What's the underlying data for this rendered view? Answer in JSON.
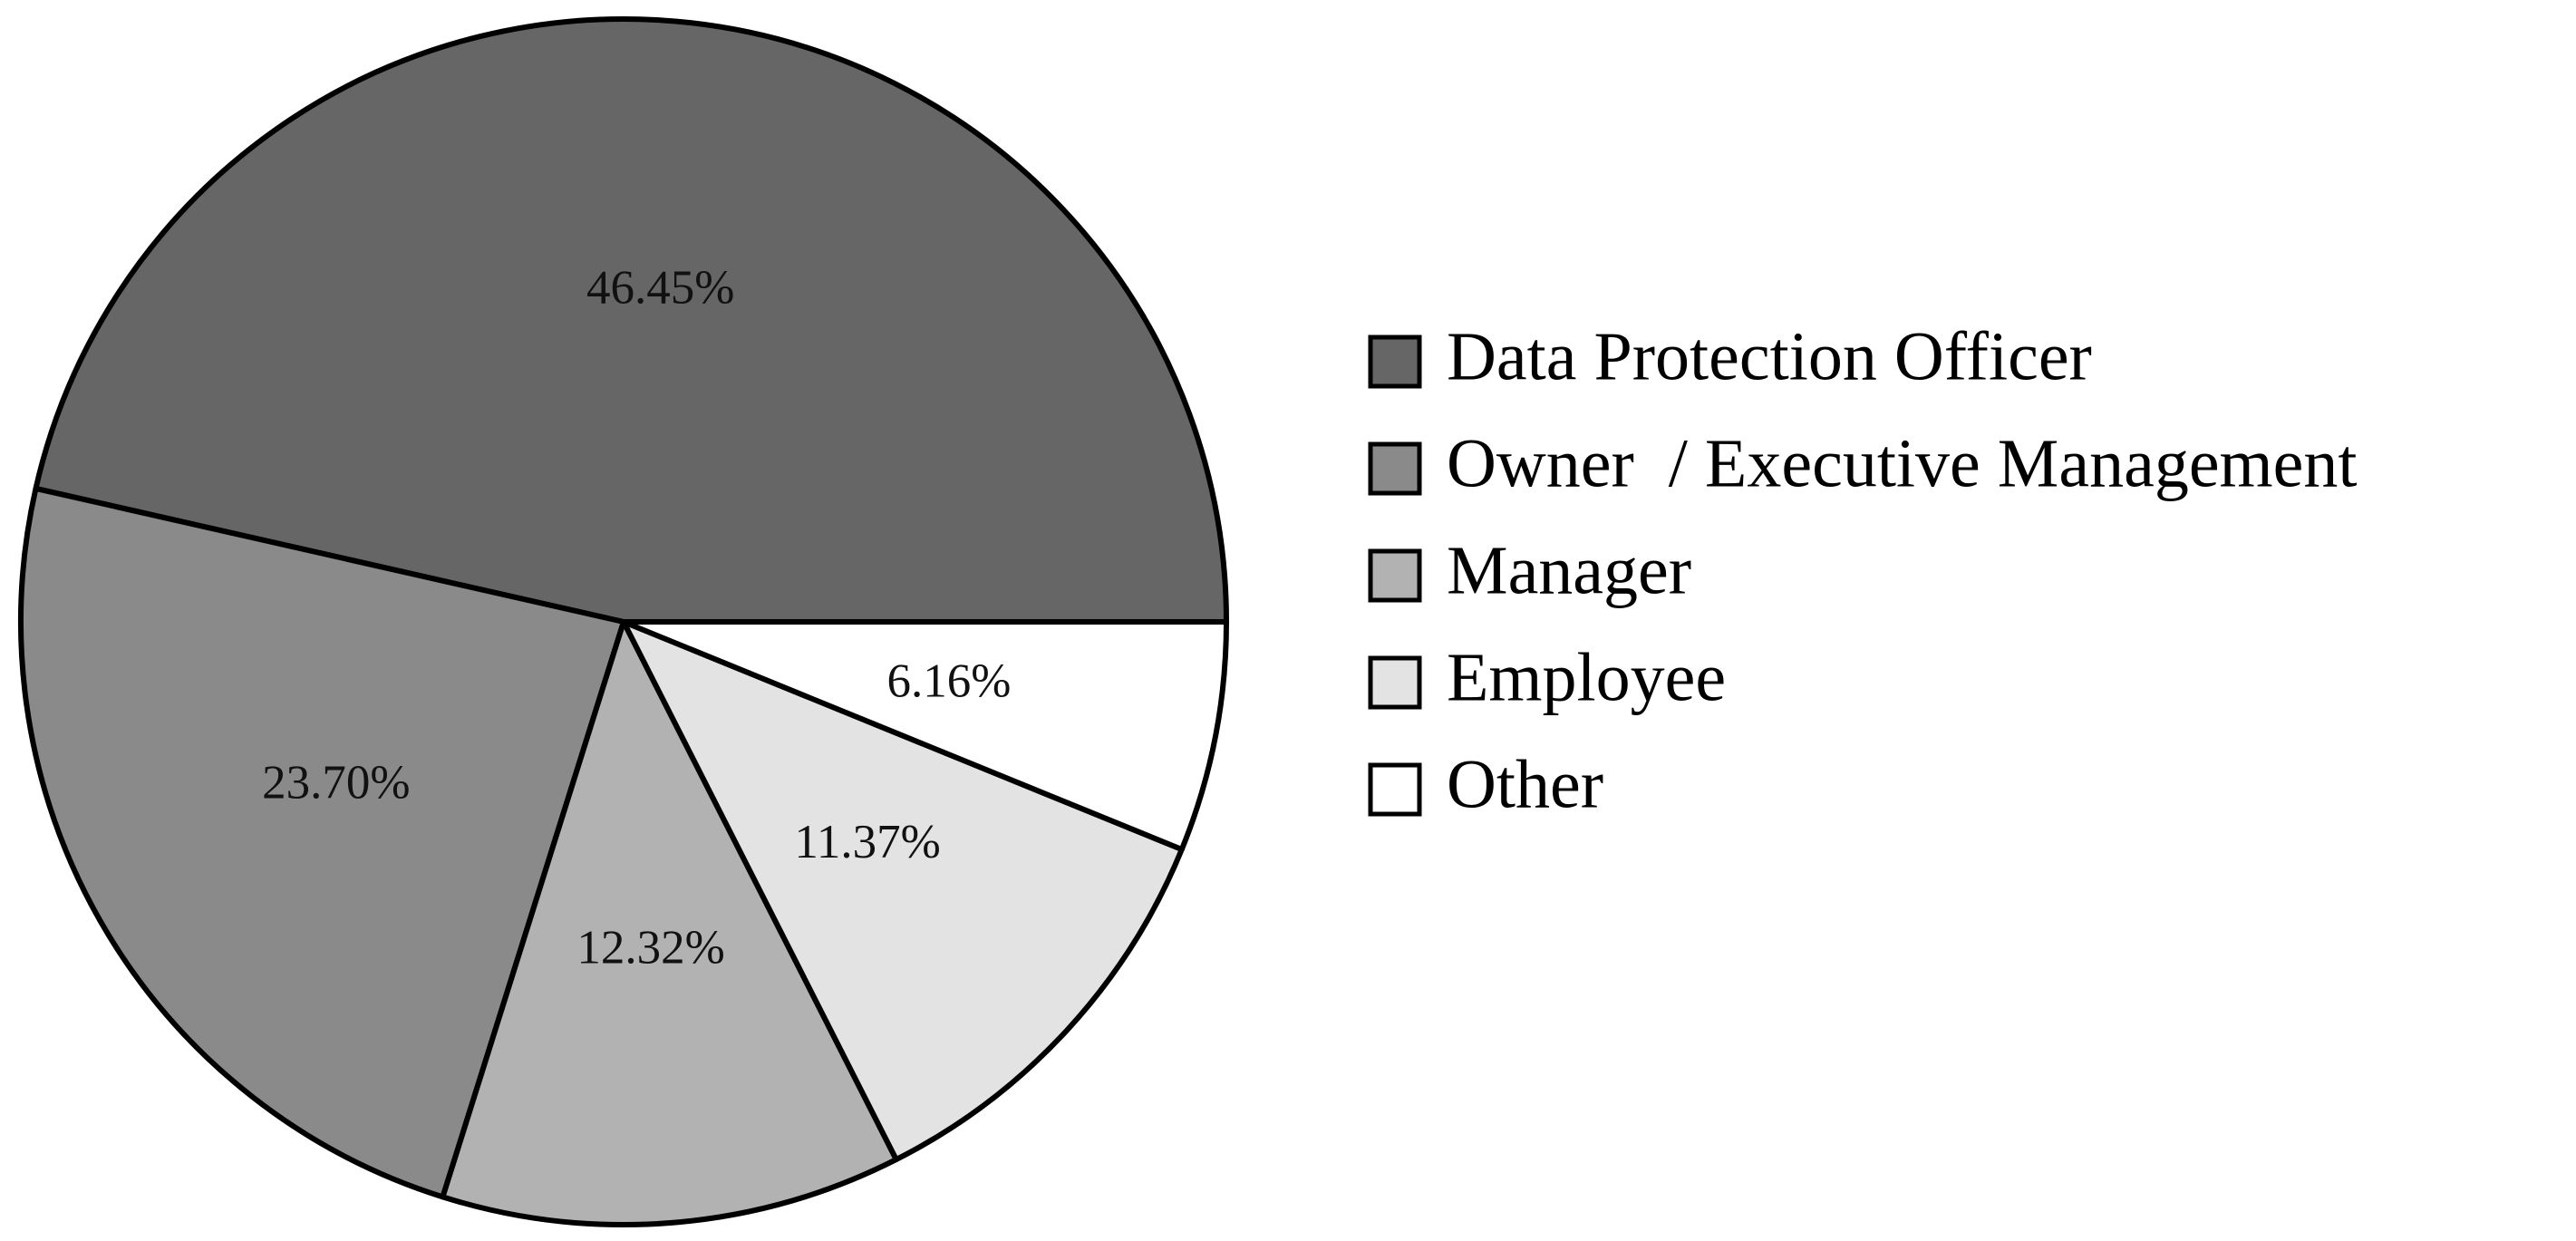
{
  "chart_data": {
    "type": "pie",
    "title": "",
    "start_angle": "3 o'clock",
    "direction": "counterclockwise",
    "slices": [
      {
        "label": "Data Protection Officer",
        "value": 46.45,
        "display": "46.45%",
        "color": "#666666"
      },
      {
        "label": "Owner  / Executive Management",
        "value": 23.7,
        "display": "23.70%",
        "color": "#8a8a8a"
      },
      {
        "label": "Manager",
        "value": 12.32,
        "display": "12.32%",
        "color": "#b2b2b2"
      },
      {
        "label": "Employee",
        "value": 11.37,
        "display": "11.37%",
        "color": "#e3e3e3"
      },
      {
        "label": "Other",
        "value": 6.16,
        "display": "6.16%",
        "color": "#ffffff"
      }
    ],
    "legend_position": "right",
    "stroke_color": "#000000"
  }
}
